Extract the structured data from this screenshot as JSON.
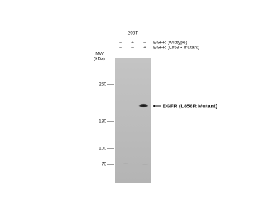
{
  "blot": {
    "cell_line": "293T",
    "conditions": [
      {
        "signs": [
          "–",
          "+",
          "–"
        ],
        "label": "EGFR (wildtype)"
      },
      {
        "signs": [
          "–",
          "–",
          "+"
        ],
        "label": "EGFR (L858R mutant)"
      }
    ],
    "mw_label": [
      "MW",
      "(kDa)"
    ],
    "markers": [
      250,
      130,
      100,
      70
    ],
    "band_label": "EGFR (L858R Mutant)"
  }
}
